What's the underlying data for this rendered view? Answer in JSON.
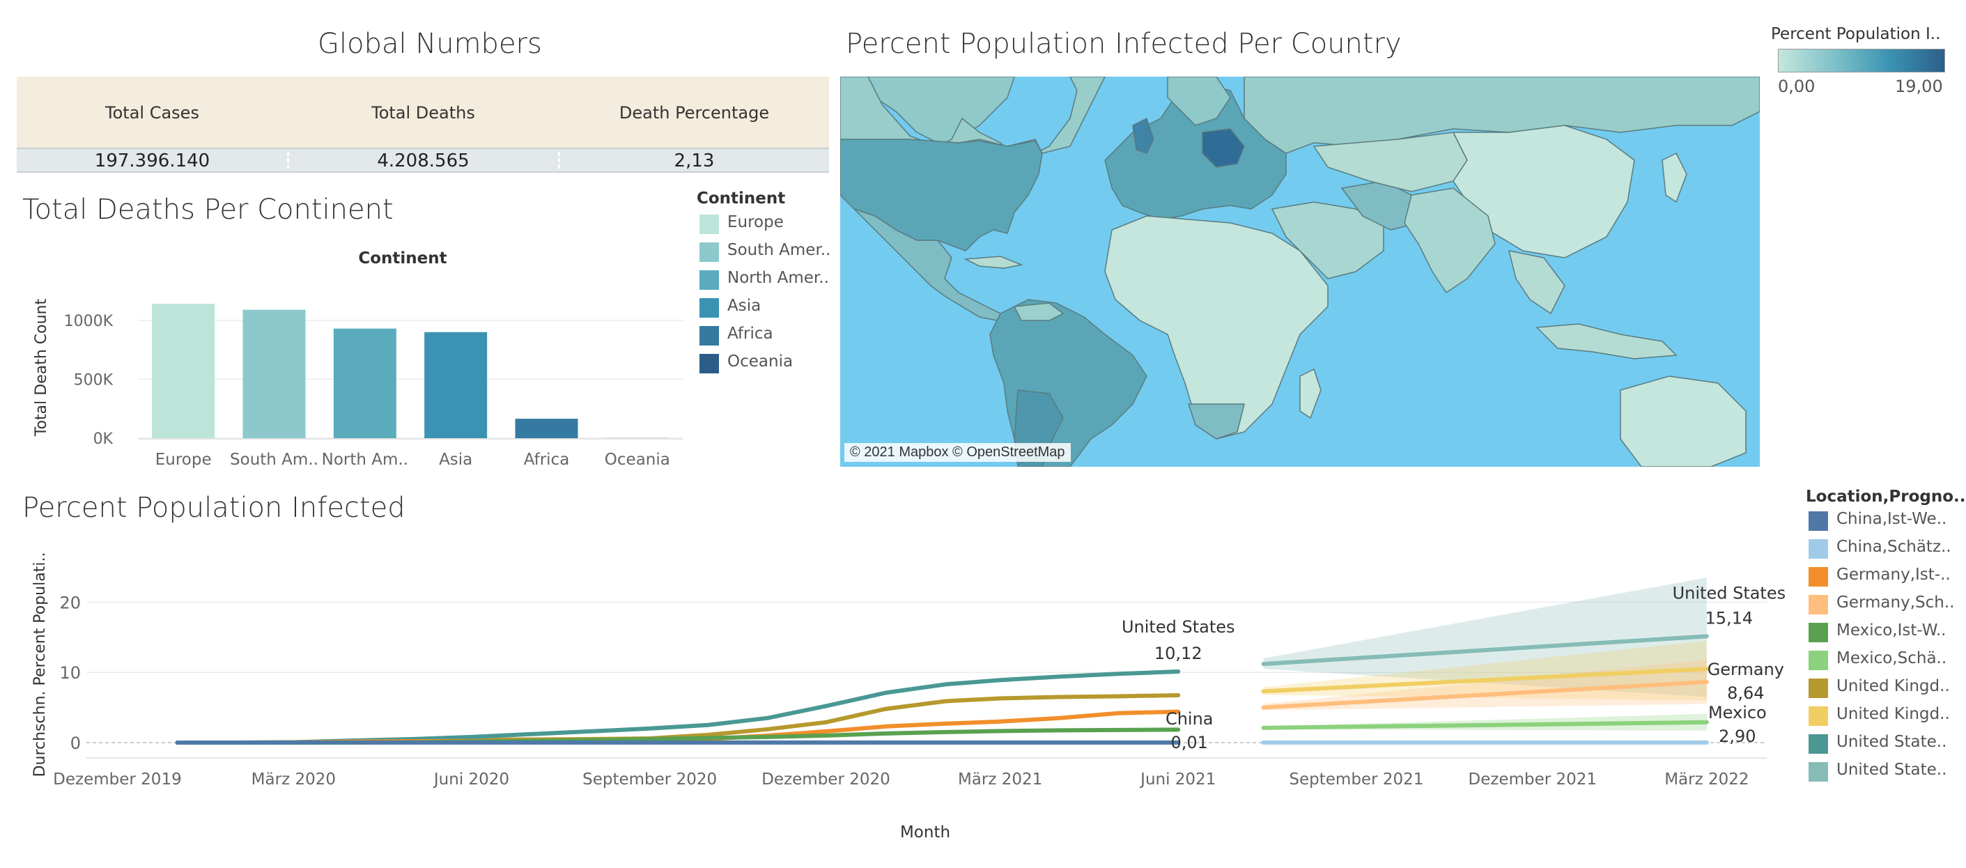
{
  "global_numbers": {
    "title": "Global Numbers",
    "headers": [
      "Total Cases",
      "Total Deaths",
      "Death Percentage"
    ],
    "values": [
      "197.396.140",
      "4.208.565",
      "2,13"
    ]
  },
  "map": {
    "title": "Percent Population Infected Per Country",
    "legend_title": "Percent Population I..",
    "legend_min": "0,00",
    "legend_max": "19,00",
    "credit": "© 2021 Mapbox © OpenStreetMap",
    "colors": {
      "ocean": "#73cbef",
      "low": "#c4e6dc",
      "high": "#2c5f8a"
    }
  },
  "deaths_legend": {
    "title": "Continent",
    "items": [
      {
        "label": "Europe",
        "color": "#bce4d8"
      },
      {
        "label": "South Amer..",
        "color": "#8dc9cc"
      },
      {
        "label": "North Amer..",
        "color": "#5aacbd"
      },
      {
        "label": "Asia",
        "color": "#3b93b3"
      },
      {
        "label": "Africa",
        "color": "#357aa0"
      },
      {
        "label": "Oceania",
        "color": "#2c5d88"
      }
    ]
  },
  "infected_legend": {
    "title": "Location,Progno..",
    "items": [
      {
        "label": "China,Ist-We..",
        "color": "#4e79a7"
      },
      {
        "label": "China,Schätz..",
        "color": "#a0cbe8"
      },
      {
        "label": "Germany,Ist-..",
        "color": "#f28e2b"
      },
      {
        "label": "Germany,Sch..",
        "color": "#ffbe7d"
      },
      {
        "label": "Mexico,Ist-W..",
        "color": "#59a14f"
      },
      {
        "label": "Mexico,Schä..",
        "color": "#8cd17d"
      },
      {
        "label": "United Kingd..",
        "color": "#b6992d"
      },
      {
        "label": "United Kingd..",
        "color": "#f1ce63"
      },
      {
        "label": "United State..",
        "color": "#499894"
      },
      {
        "label": "United State..",
        "color": "#86bcb6"
      }
    ]
  },
  "chart_data": [
    {
      "type": "bar",
      "title": "Total Deaths Per Continent",
      "subtitle": "Continent",
      "ylabel": "Total Death Count",
      "xlabel": "",
      "categories": [
        "Europe",
        "South Am..",
        "North Am..",
        "Asia",
        "Africa",
        "Oceania"
      ],
      "values": [
        1140000,
        1090000,
        930000,
        900000,
        165000,
        1000
      ],
      "colors": [
        "#bce4d8",
        "#8dc9cc",
        "#5aacbd",
        "#3b93b3",
        "#357aa0",
        "#2c5d88"
      ],
      "ylim": [
        0,
        1200000
      ],
      "yticks": [
        0,
        500000,
        1000000
      ],
      "ytick_labels": [
        "0K",
        "500K",
        "1000K"
      ],
      "grid": true
    },
    {
      "type": "line",
      "title": "Percent Population Infected",
      "xlabel": "Month",
      "ylabel": "Durchschn. Percent Populati..",
      "ylim": [
        0,
        25
      ],
      "yticks": [
        0,
        10,
        20
      ],
      "xlim": [
        "2019-11-15",
        "2022-04-01"
      ],
      "xticks": [
        "2019-12-01",
        "2020-03-01",
        "2020-06-01",
        "2020-09-01",
        "2020-12-01",
        "2021-03-01",
        "2021-06-01",
        "2021-09-01",
        "2021-12-01",
        "2022-03-01"
      ],
      "xtick_labels": [
        "Dezember 2019",
        "März 2020",
        "Juni 2020",
        "September 2020",
        "Dezember 2020",
        "März 2021",
        "Juni 2021",
        "September 2021",
        "Dezember 2021",
        "März 2022"
      ],
      "actual_x": [
        "2020-01-01",
        "2020-02-01",
        "2020-03-01",
        "2020-04-01",
        "2020-05-01",
        "2020-06-01",
        "2020-07-01",
        "2020-08-01",
        "2020-09-01",
        "2020-10-01",
        "2020-11-01",
        "2020-12-01",
        "2021-01-01",
        "2021-02-01",
        "2021-03-01",
        "2021-04-01",
        "2021-05-01",
        "2021-06-01"
      ],
      "series": [
        {
          "name": "United Kingd..",
          "color": "#b6992d",
          "values": [
            0,
            0,
            0.05,
            0.2,
            0.35,
            0.4,
            0.45,
            0.5,
            0.6,
            1.1,
            1.9,
            2.9,
            4.8,
            5.9,
            6.3,
            6.5,
            6.6,
            6.75
          ]
        },
        {
          "name": "United State..",
          "color": "#499894",
          "values": [
            0,
            0,
            0.05,
            0.3,
            0.5,
            0.8,
            1.2,
            1.6,
            2.0,
            2.5,
            3.5,
            5.2,
            7.1,
            8.3,
            8.9,
            9.4,
            9.8,
            10.12
          ]
        },
        {
          "name": "Germany,Ist-..",
          "color": "#f28e2b",
          "values": [
            0,
            0,
            0.03,
            0.15,
            0.2,
            0.22,
            0.25,
            0.3,
            0.35,
            0.5,
            1.0,
            1.6,
            2.3,
            2.7,
            3.0,
            3.5,
            4.2,
            4.4
          ]
        },
        {
          "name": "Mexico,Ist-W..",
          "color": "#59a14f",
          "values": [
            0,
            0,
            0,
            0.01,
            0.05,
            0.15,
            0.25,
            0.35,
            0.5,
            0.65,
            0.8,
            1.0,
            1.3,
            1.5,
            1.65,
            1.75,
            1.8,
            1.85
          ]
        },
        {
          "name": "China,Ist-We..",
          "color": "#4e79a7",
          "values": [
            0,
            0,
            0.01,
            0.01,
            0.01,
            0.01,
            0.01,
            0.01,
            0.01,
            0.01,
            0.01,
            0.01,
            0.01,
            0.01,
            0.01,
            0.01,
            0.01,
            0.01
          ]
        }
      ],
      "forecast_x": [
        "2021-07-15",
        "2022-03-01"
      ],
      "forecasts": [
        {
          "name": "United State..",
          "color": "#86bcb6",
          "values": [
            11.2,
            15.14
          ],
          "band_low": [
            10.5,
            6.5
          ],
          "band_high": [
            12.0,
            23.5
          ]
        },
        {
          "name": "United Kingd..",
          "color": "#f1ce63",
          "values": [
            7.3,
            10.5
          ],
          "band_low": [
            6.8,
            6.0
          ],
          "band_high": [
            7.9,
            14.5
          ]
        },
        {
          "name": "Germany,Sch..",
          "color": "#ffbe7d",
          "values": [
            5.0,
            8.64
          ],
          "band_low": [
            4.6,
            5.5
          ],
          "band_high": [
            5.5,
            11.8
          ]
        },
        {
          "name": "Mexico,Schä..",
          "color": "#8cd17d",
          "values": [
            2.1,
            2.9
          ],
          "band_low": [
            1.9,
            1.7
          ],
          "band_high": [
            2.3,
            4.1
          ]
        },
        {
          "name": "China,Schätz..",
          "color": "#a0cbe8",
          "values": [
            0.01,
            0.01
          ],
          "band_low": [
            0,
            0
          ],
          "band_high": [
            0.05,
            0.05
          ]
        }
      ],
      "annotations": [
        {
          "label": "United States",
          "value": "10,12"
        },
        {
          "label": "China",
          "value": "0,01"
        },
        {
          "label": "United States",
          "value": "15,14"
        },
        {
          "label": "Germany",
          "value": "8,64"
        },
        {
          "label": "Mexico",
          "value": "2,90"
        }
      ]
    }
  ]
}
